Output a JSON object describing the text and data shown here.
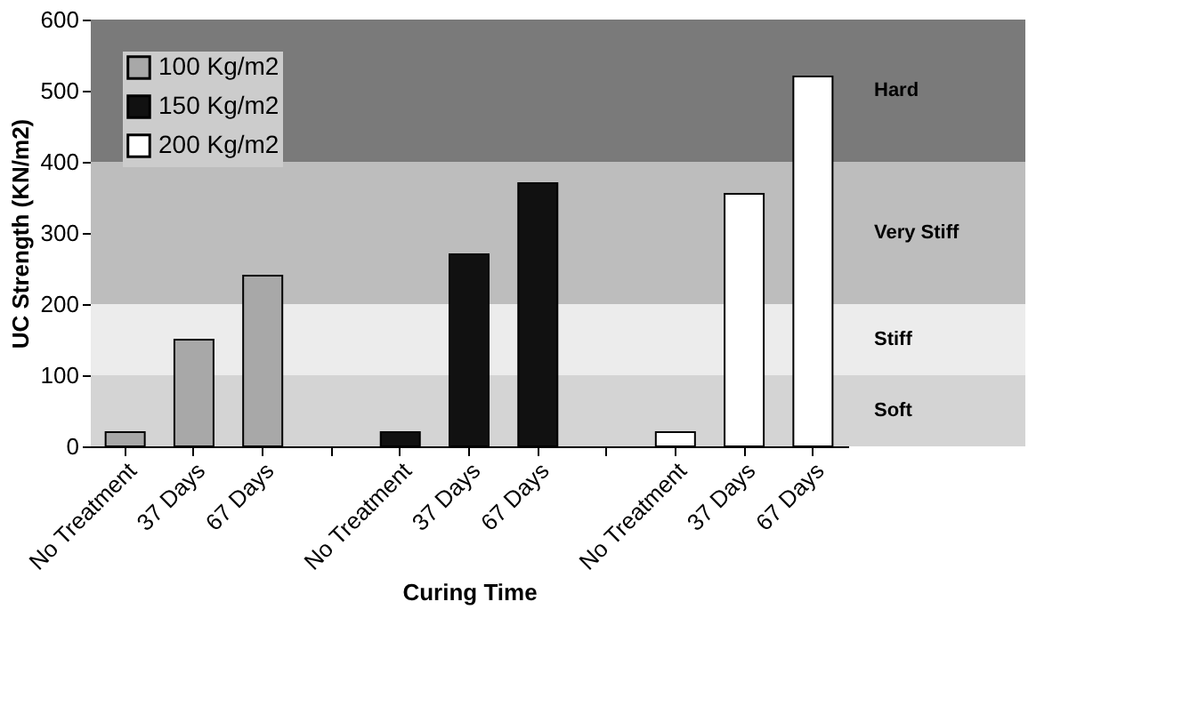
{
  "chart_data": {
    "type": "bar",
    "xlabel": "Curing Time",
    "ylabel": "UC Strength (KN/m2)",
    "categories": [
      "No Treatment",
      "37 Days",
      "67 Days",
      null,
      "No Treatment",
      "37 Days",
      "67 Days",
      null,
      "No Treatment",
      "37 Days",
      "67 Days"
    ],
    "series": [
      {
        "name": "100 Kg/m2",
        "color": "#a8a8a8",
        "values": [
          20,
          150,
          240,
          null,
          null,
          null,
          null,
          null,
          null,
          null,
          null
        ]
      },
      {
        "name": "150 Kg/m2",
        "color": "#111111",
        "values": [
          null,
          null,
          null,
          null,
          20,
          270,
          370,
          null,
          null,
          null,
          null
        ]
      },
      {
        "name": "200 Kg/m2",
        "color": "#ffffff",
        "values": [
          null,
          null,
          null,
          null,
          null,
          null,
          null,
          null,
          20,
          355,
          520
        ]
      }
    ],
    "ylim": [
      0,
      600
    ],
    "yticks": [
      0,
      100,
      200,
      300,
      400,
      500,
      600
    ],
    "grid": false,
    "legend": "top left",
    "bands": [
      {
        "axis": "y",
        "from": 0,
        "to": 100,
        "label": "Soft",
        "color": "#d4d4d4"
      },
      {
        "axis": "y",
        "from": 100,
        "to": 200,
        "label": "Stiff",
        "color": "#ececec"
      },
      {
        "axis": "y",
        "from": 200,
        "to": 400,
        "label": "Very Stiff",
        "color": "#bdbdbd"
      },
      {
        "axis": "y",
        "from": 400,
        "to": 600,
        "label": "Hard",
        "color": "#7a7a7a"
      }
    ]
  }
}
